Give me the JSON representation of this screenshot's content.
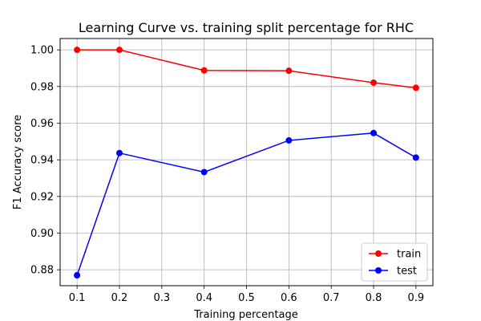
{
  "chart_data": {
    "type": "line",
    "title": "Learning Curve vs. training split percentage for RHC",
    "xlabel": "Training percentage",
    "ylabel": "F1 Accuracy score",
    "x": [
      0.1,
      0.2,
      0.4,
      0.6,
      0.8,
      0.9
    ],
    "xlim": [
      0.06,
      0.94
    ],
    "ylim": [
      0.8713,
      1.0062
    ],
    "xticks": [
      0.1,
      0.2,
      0.3,
      0.4,
      0.5,
      0.6,
      0.7,
      0.8,
      0.9
    ],
    "xtick_labels": [
      "0.1",
      "0.2",
      "0.3",
      "0.4",
      "0.5",
      "0.6",
      "0.7",
      "0.8",
      "0.9"
    ],
    "yticks": [
      0.88,
      0.9,
      0.92,
      0.94,
      0.96,
      0.98,
      1.0
    ],
    "ytick_labels": [
      "0.88",
      "0.90",
      "0.92",
      "0.94",
      "0.96",
      "0.98",
      "1.00"
    ],
    "grid": true,
    "legend_position": "lower-right",
    "series": [
      {
        "name": "train",
        "color": "#ff0000",
        "values": [
          1.0,
          1.0,
          0.9888,
          0.9886,
          0.9821,
          0.9793
        ]
      },
      {
        "name": "test",
        "color": "#0000ff",
        "values": [
          0.877,
          0.9437,
          0.9333,
          0.9506,
          0.9546,
          0.9412
        ]
      }
    ]
  }
}
